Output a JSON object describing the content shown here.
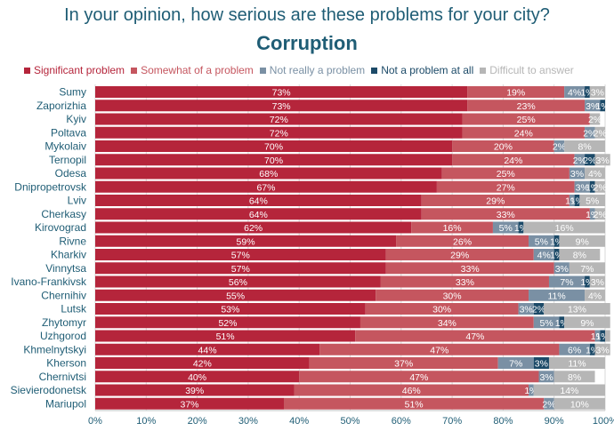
{
  "chart_data": {
    "type": "stacked-bar-horizontal",
    "title": "In your opinion, how serious are these problems for your city?",
    "subtitle": "Corruption",
    "xlim": [
      0,
      100
    ],
    "x_ticks": [
      "0%",
      "10%",
      "20%",
      "30%",
      "40%",
      "50%",
      "60%",
      "70%",
      "80%",
      "90%",
      "100%"
    ],
    "legend_position": "top",
    "categories": [
      "Sumy",
      "Zaporizhia",
      "Kyiv",
      "Poltava",
      "Mykolaiv",
      "Ternopil",
      "Odesa",
      "Dnipropetrovsk",
      "Lviv",
      "Cherkasy",
      "Kirovograd",
      "Rivne",
      "Kharkiv",
      "Vinnytsa",
      "Ivano-Frankivsk",
      "Chernihiv",
      "Lutsk",
      "Zhytomyr",
      "Uzhgorod",
      "Khmelnytskyi",
      "Kherson",
      "Chernivtsi",
      "Sievierodonetsk",
      "Mariupol"
    ],
    "series": [
      {
        "name": "Significant problem",
        "color": "#b5253b",
        "label_color": "#ffffff",
        "values": [
          73,
          73,
          72,
          72,
          70,
          70,
          68,
          67,
          64,
          64,
          62,
          59,
          57,
          57,
          56,
          55,
          53,
          52,
          51,
          44,
          42,
          40,
          39,
          37
        ]
      },
      {
        "name": "Somewhat of a problem",
        "color": "#c5565f",
        "label_color": "#ffffff",
        "values": [
          19,
          23,
          25,
          24,
          20,
          24,
          25,
          27,
          29,
          33,
          16,
          26,
          29,
          33,
          33,
          30,
          30,
          34,
          47,
          47,
          37,
          47,
          46,
          51
        ]
      },
      {
        "name": "Not really a problem",
        "color": "#7a90a4",
        "label_color": "#ffffff",
        "values": [
          4,
          3,
          0,
          2,
          2,
          2,
          3,
          3,
          1,
          1,
          5,
          5,
          4,
          3,
          7,
          11,
          3,
          5,
          1,
          6,
          7,
          3,
          1,
          2
        ]
      },
      {
        "name": "Not a problem at all",
        "color": "#1c4a68",
        "label_color": "#ffffff",
        "values": [
          1,
          1,
          0,
          0,
          0,
          2,
          0,
          1,
          1,
          0,
          1,
          1,
          1,
          0,
          1,
          0,
          2,
          1,
          1,
          1,
          3,
          0,
          0,
          0
        ]
      },
      {
        "name": "Difficult to answer",
        "color": "#b6b6b6",
        "label_color": "#ffffff",
        "values": [
          3,
          0,
          2,
          2,
          8,
          3,
          4,
          2,
          5,
          2,
          16,
          9,
          8,
          7,
          3,
          4,
          13,
          9,
          1,
          3,
          11,
          8,
          14,
          10
        ]
      }
    ],
    "labels": [
      [
        "73%",
        "19%",
        "4%",
        "1%",
        "3%"
      ],
      [
        "73%",
        "23%",
        "3%",
        "1%",
        ""
      ],
      [
        "72%",
        "25%",
        "",
        "",
        "2%"
      ],
      [
        "72%",
        "24%",
        "2%",
        "",
        "2%"
      ],
      [
        "70%",
        "20%",
        "2%",
        "",
        "8%"
      ],
      [
        "70%",
        "24%",
        "2%",
        "2%",
        "3%"
      ],
      [
        "68%",
        "25%",
        "3%",
        "",
        "4%"
      ],
      [
        "67%",
        "27%",
        "3%",
        "1%",
        "2%"
      ],
      [
        "64%",
        "29%",
        "1%",
        "1%",
        "5%"
      ],
      [
        "64%",
        "33%",
        "1%",
        "",
        "2%"
      ],
      [
        "62%",
        "16%",
        "5%",
        "1%",
        "16%"
      ],
      [
        "59%",
        "26%",
        "5%",
        "1%",
        "9%"
      ],
      [
        "57%",
        "29%",
        "4%",
        "1%",
        "8%"
      ],
      [
        "57%",
        "33%",
        "3%",
        "",
        "7%"
      ],
      [
        "56%",
        "33%",
        "7%",
        "1%",
        "3%"
      ],
      [
        "55%",
        "30%",
        "11%",
        "",
        "4%"
      ],
      [
        "53%",
        "30%",
        "3%",
        "2%",
        "13%"
      ],
      [
        "52%",
        "34%",
        "5%",
        "1%",
        "9%"
      ],
      [
        "51%",
        "47%",
        "1%",
        "1%",
        ""
      ],
      [
        "44%",
        "47%",
        "6%",
        "1%",
        "3%"
      ],
      [
        "42%",
        "37%",
        "7%",
        "3%",
        "11%"
      ],
      [
        "40%",
        "47%",
        "3%",
        "",
        "8%"
      ],
      [
        "39%",
        "46%",
        "1%",
        "",
        "14%"
      ],
      [
        "37%",
        "51%",
        "2%",
        "",
        "10%"
      ]
    ]
  }
}
